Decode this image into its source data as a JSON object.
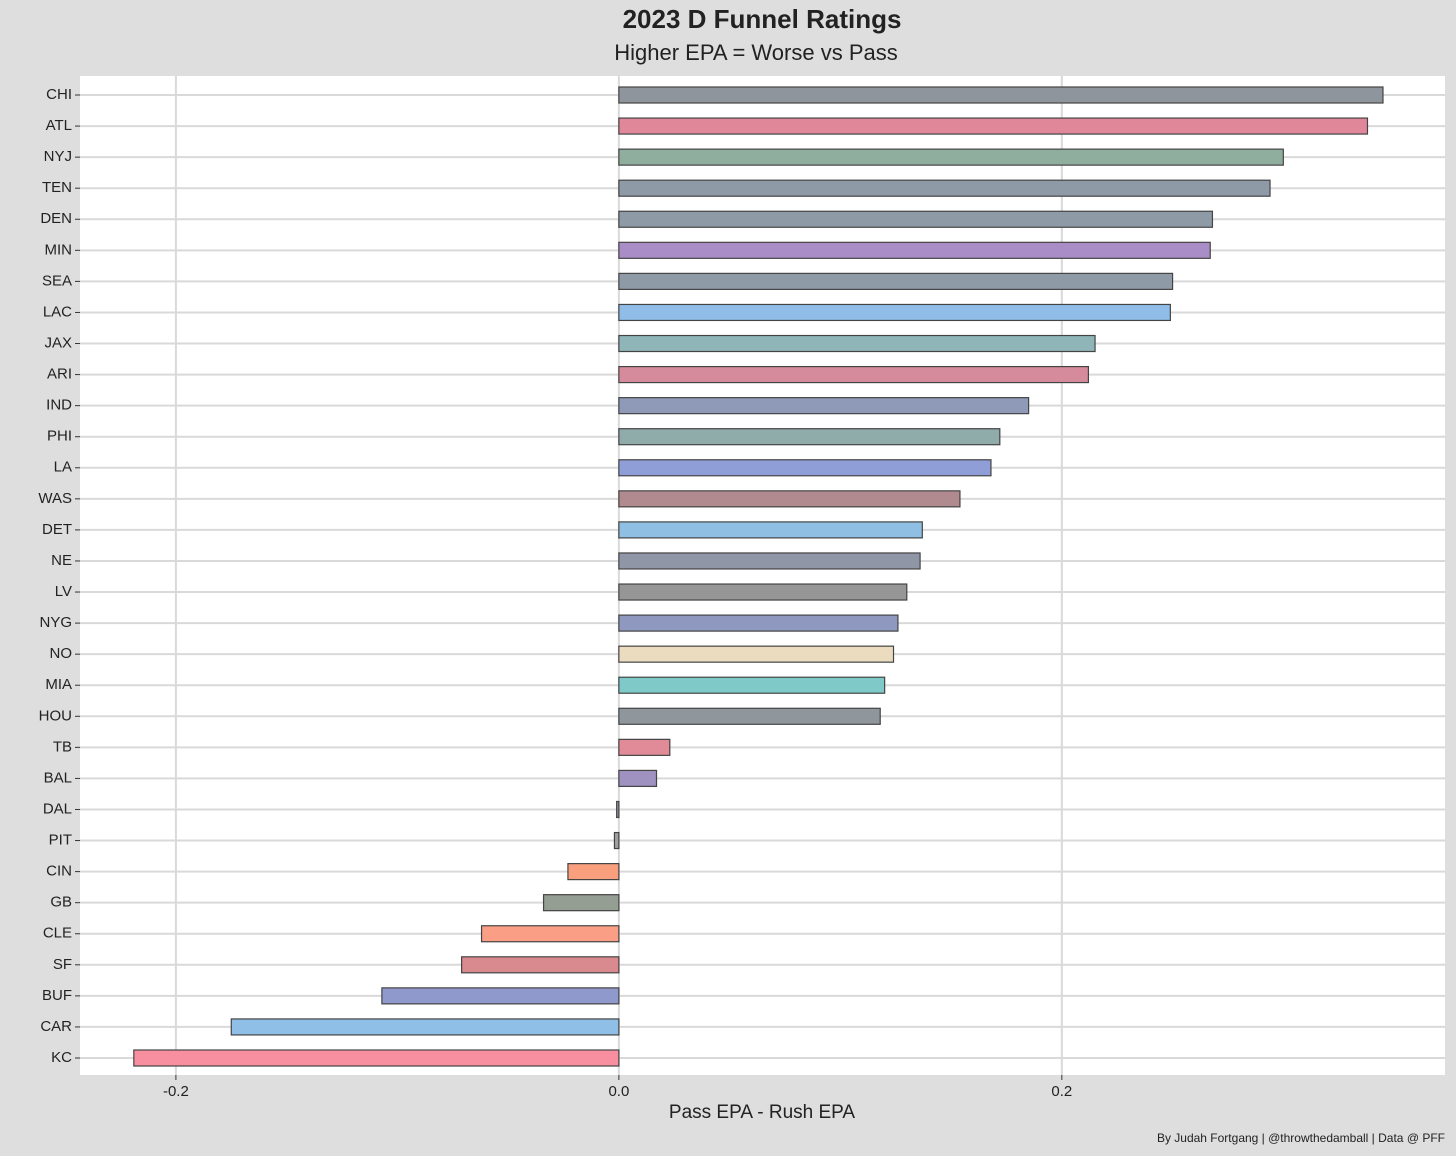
{
  "chart_data": {
    "type": "barh",
    "title": "2023 D Funnel Ratings",
    "subtitle": "Higher EPA = Worse vs Pass",
    "x_label": "Pass EPA - Rush EPA",
    "caption": "By Judah Fortgang | @throwthedamball | Data @ PFF",
    "categories": [
      "CHI",
      "ATL",
      "NYJ",
      "TEN",
      "DEN",
      "MIN",
      "SEA",
      "LAC",
      "JAX",
      "ARI",
      "IND",
      "PHI",
      "LA",
      "WAS",
      "DET",
      "NE",
      "LV",
      "NYG",
      "NO",
      "MIA",
      "HOU",
      "TB",
      "BAL",
      "DAL",
      "PIT",
      "CIN",
      "GB",
      "CLE",
      "SF",
      "BUF",
      "CAR",
      "KC"
    ],
    "values": [
      0.345,
      0.338,
      0.3,
      0.294,
      0.268,
      0.267,
      0.25,
      0.249,
      0.215,
      0.212,
      0.185,
      0.172,
      0.168,
      0.154,
      0.137,
      0.136,
      0.13,
      0.126,
      0.124,
      0.12,
      0.118,
      0.023,
      0.017,
      -0.001,
      -0.002,
      -0.023,
      -0.034,
      -0.062,
      -0.071,
      -0.107,
      -0.175,
      -0.219
    ],
    "colors": [
      "#8f959c",
      "#e0879a",
      "#8fae9d",
      "#8f9aa7",
      "#8f9aa7",
      "#a98dc6",
      "#8f9aa7",
      "#8fbde8",
      "#8fb5b8",
      "#d58b9b",
      "#8f99b8",
      "#8fabaa",
      "#8f9ed6",
      "#b08a8f",
      "#8fbfe3",
      "#8f97a6",
      "#969696",
      "#8f99c0",
      "#ecdcbf",
      "#7fcac8",
      "#8f979d",
      "#e08b97",
      "#9f91c0",
      "#8f99a8",
      "#a0a0a0",
      "#fa9f7e",
      "#959e93",
      "#fa9f86",
      "#d98a8f",
      "#8f99cc",
      "#8fbfe6",
      "#f78fa1"
    ],
    "xlim": [
      -0.2433,
      0.373
    ],
    "xticks": [
      {
        "value": -0.2,
        "label": "-0.2"
      },
      {
        "value": 0,
        "label": "0.0"
      },
      {
        "value": 0.2,
        "label": "0.2"
      }
    ],
    "grid": true
  }
}
